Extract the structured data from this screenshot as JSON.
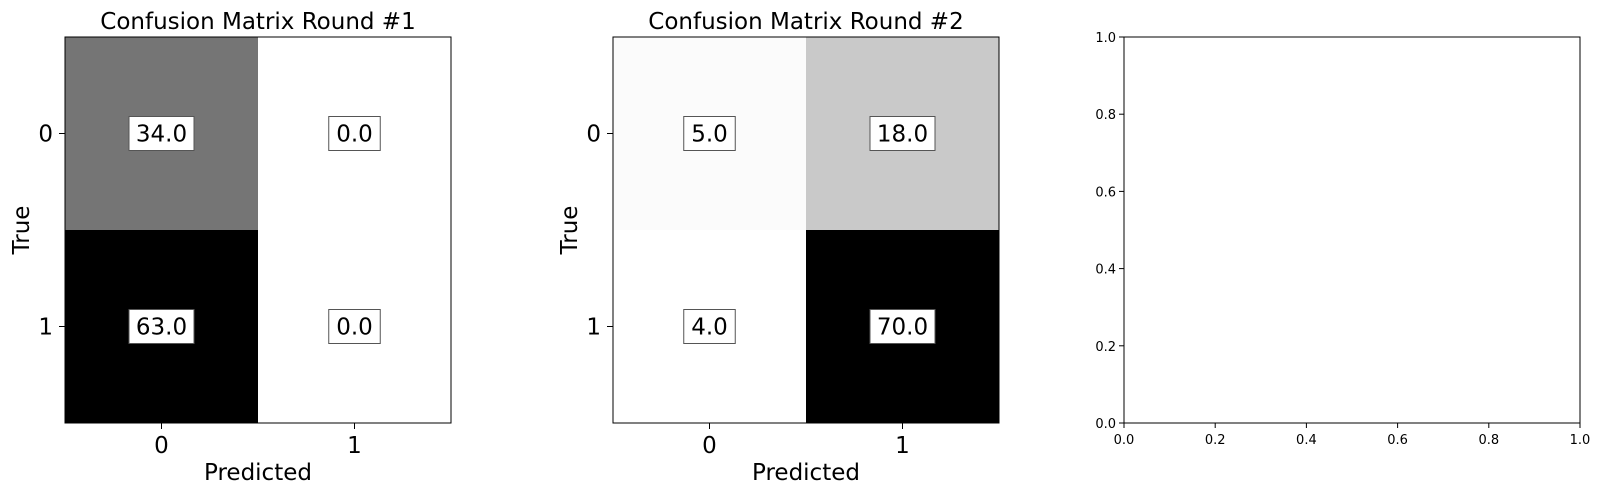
{
  "chart_data": [
    {
      "type": "heatmap",
      "title": "Confusion Matrix Round #1",
      "xlabel": "Predicted",
      "ylabel": "True",
      "x_categories": [
        "0",
        "1"
      ],
      "y_categories": [
        "0",
        "1"
      ],
      "values": [
        [
          34.0,
          0.0
        ],
        [
          63.0,
          0.0
        ]
      ],
      "value_labels": [
        [
          "34.0",
          "0.0"
        ],
        [
          "63.0",
          "0.0"
        ]
      ],
      "colormap": "greys",
      "value_range": [
        0,
        63
      ]
    },
    {
      "type": "heatmap",
      "title": "Confusion Matrix Round #2",
      "xlabel": "Predicted",
      "ylabel": "True",
      "x_categories": [
        "0",
        "1"
      ],
      "y_categories": [
        "0",
        "1"
      ],
      "values": [
        [
          5.0,
          18.0
        ],
        [
          4.0,
          70.0
        ]
      ],
      "value_labels": [
        [
          "5.0",
          "18.0"
        ],
        [
          "4.0",
          "70.0"
        ]
      ],
      "colormap": "greys",
      "value_range": [
        4,
        70
      ]
    },
    {
      "type": "scatter",
      "title": "",
      "xlabel": "",
      "ylabel": "",
      "series": [],
      "xlim": [
        0.0,
        1.0
      ],
      "ylim": [
        0.0,
        1.0
      ],
      "x_ticks": [
        "0.0",
        "0.2",
        "0.4",
        "0.6",
        "0.8",
        "1.0"
      ],
      "y_ticks": [
        "0.0",
        "0.2",
        "0.4",
        "0.6",
        "0.8",
        "1.0"
      ]
    }
  ]
}
